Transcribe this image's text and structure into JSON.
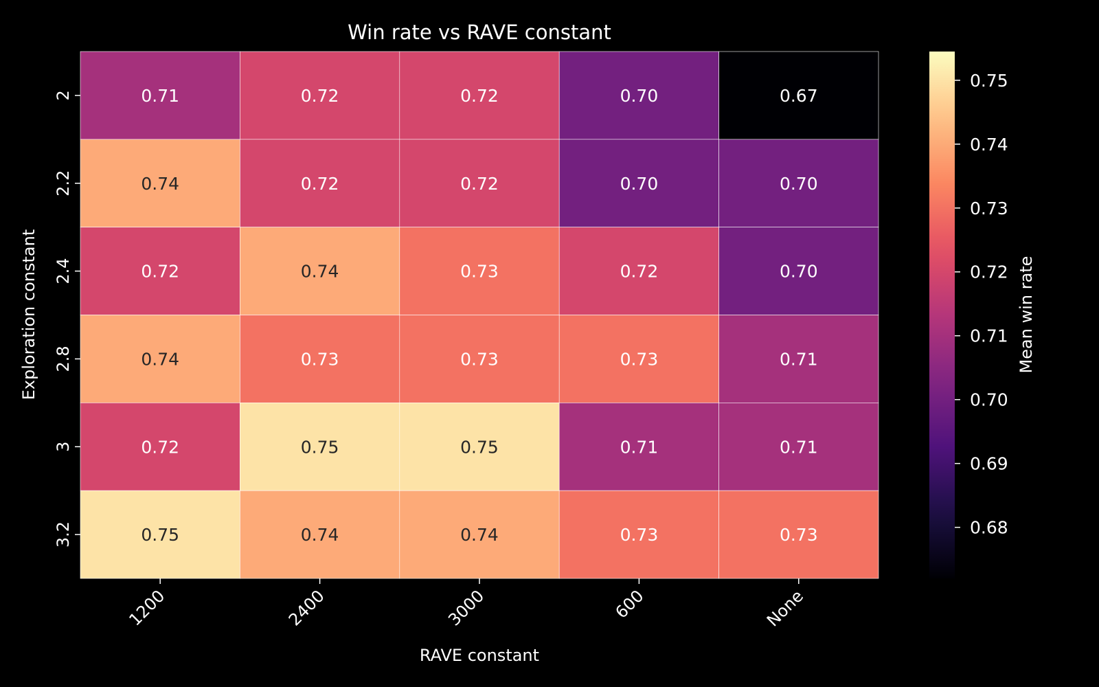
{
  "chart_data": {
    "type": "heatmap",
    "title": "Win rate vs RAVE constant",
    "xlabel": "RAVE constant",
    "ylabel": "Exploration constant",
    "x_categories": [
      "1200",
      "2400",
      "3000",
      "600",
      "None"
    ],
    "y_categories": [
      "2",
      "2.2",
      "2.4",
      "2.8",
      "3",
      "3.2"
    ],
    "values": [
      [
        0.71,
        0.72,
        0.72,
        0.7,
        0.67
      ],
      [
        0.74,
        0.72,
        0.72,
        0.7,
        0.7
      ],
      [
        0.72,
        0.74,
        0.73,
        0.72,
        0.7
      ],
      [
        0.74,
        0.73,
        0.73,
        0.73,
        0.71
      ],
      [
        0.72,
        0.75,
        0.75,
        0.71,
        0.71
      ],
      [
        0.75,
        0.74,
        0.74,
        0.73,
        0.73
      ]
    ],
    "value_format": "2 decimals",
    "colorscale": "magma",
    "colorbar": {
      "label": "Mean win rate",
      "range": [
        0.672,
        0.7545
      ],
      "ticks": [
        0.68,
        0.69,
        0.7,
        0.71,
        0.72,
        0.73,
        0.74,
        0.75
      ],
      "tick_labels": [
        "0.68",
        "0.69",
        "0.70",
        "0.71",
        "0.72",
        "0.73",
        "0.74",
        "0.75"
      ]
    },
    "colors": {
      "background": "#000000",
      "text": "#ffffff",
      "cell_border": "#ffffff",
      "dark_text_on_light_cells": "#262626"
    }
  }
}
